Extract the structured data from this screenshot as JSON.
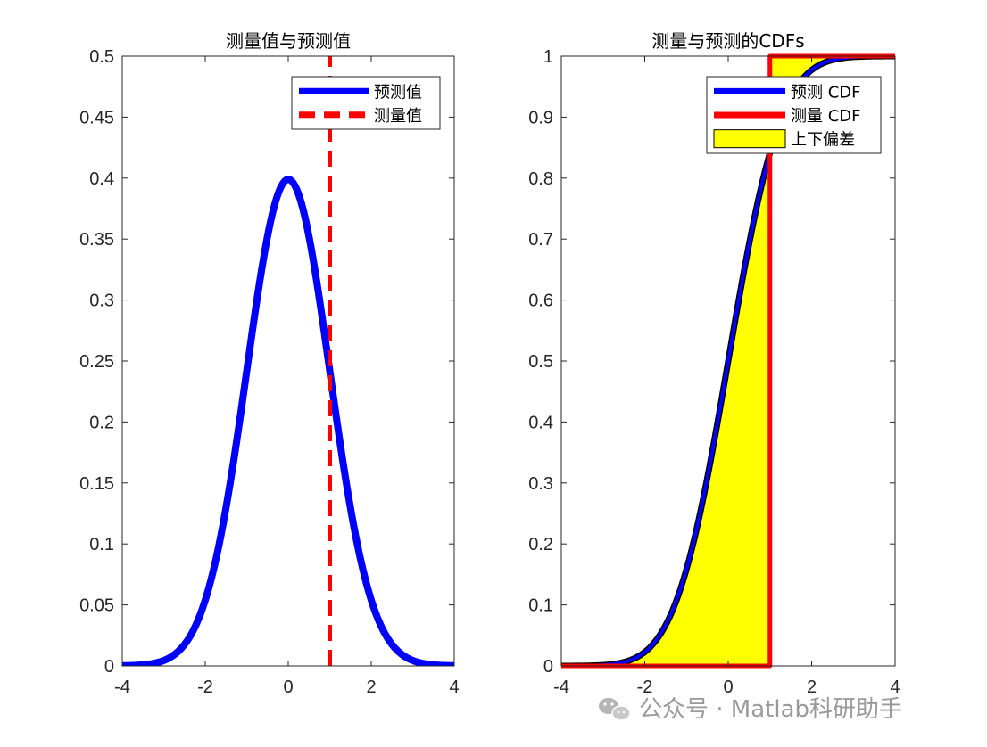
{
  "watermark": {
    "text": "公众号 · Matlab科研助手",
    "icon": "wechat-icon"
  },
  "chart_data": [
    {
      "type": "line",
      "title": "测量值与预测值",
      "xlim": [
        -4,
        4
      ],
      "ylim": [
        0,
        0.5
      ],
      "xticks": [
        -4,
        -2,
        0,
        2,
        4
      ],
      "yticks": [
        0,
        0.05,
        0.1,
        0.15,
        0.2,
        0.25,
        0.3,
        0.35,
        0.4,
        0.45,
        0.5
      ],
      "xtick_labels": [
        "-4",
        "-2",
        "0",
        "2",
        "4"
      ],
      "ytick_labels": [
        "0",
        "0.05",
        "0.1",
        "0.15",
        "0.2",
        "0.25",
        "0.3",
        "0.35",
        "0.4",
        "0.45",
        "0.5"
      ],
      "grid": false,
      "legend_position": "top-right",
      "series": [
        {
          "name": "预测值",
          "kind": "normal-pdf",
          "mean": 0,
          "std": 1,
          "color": "#0000ff",
          "style": "solid"
        },
        {
          "name": "测量值",
          "kind": "vertical-line",
          "x": 1,
          "color": "#ff0000",
          "style": "dashed"
        }
      ]
    },
    {
      "type": "area",
      "title": "测量与预测的CDFs",
      "xlim": [
        -4,
        4
      ],
      "ylim": [
        0,
        1
      ],
      "xticks": [
        -4,
        -2,
        0,
        2,
        4
      ],
      "yticks": [
        0,
        0.1,
        0.2,
        0.3,
        0.4,
        0.5,
        0.6,
        0.7,
        0.8,
        0.9,
        1
      ],
      "xtick_labels": [
        "-4",
        "-2",
        "0",
        "2",
        "4"
      ],
      "ytick_labels": [
        "0",
        "0.1",
        "0.2",
        "0.3",
        "0.4",
        "0.5",
        "0.6",
        "0.7",
        "0.8",
        "0.9",
        "1"
      ],
      "grid": false,
      "legend_position": "top-right",
      "series": [
        {
          "name": "预测 CDF",
          "kind": "normal-cdf",
          "mean": 0,
          "std": 1,
          "color": "#0000ff",
          "style": "solid"
        },
        {
          "name": "测量 CDF",
          "kind": "step",
          "x": 1,
          "color": "#ff0000",
          "style": "solid"
        },
        {
          "name": "上下偏差",
          "kind": "fill-between",
          "color": "#ffff00",
          "edge": "#000000"
        }
      ]
    }
  ]
}
